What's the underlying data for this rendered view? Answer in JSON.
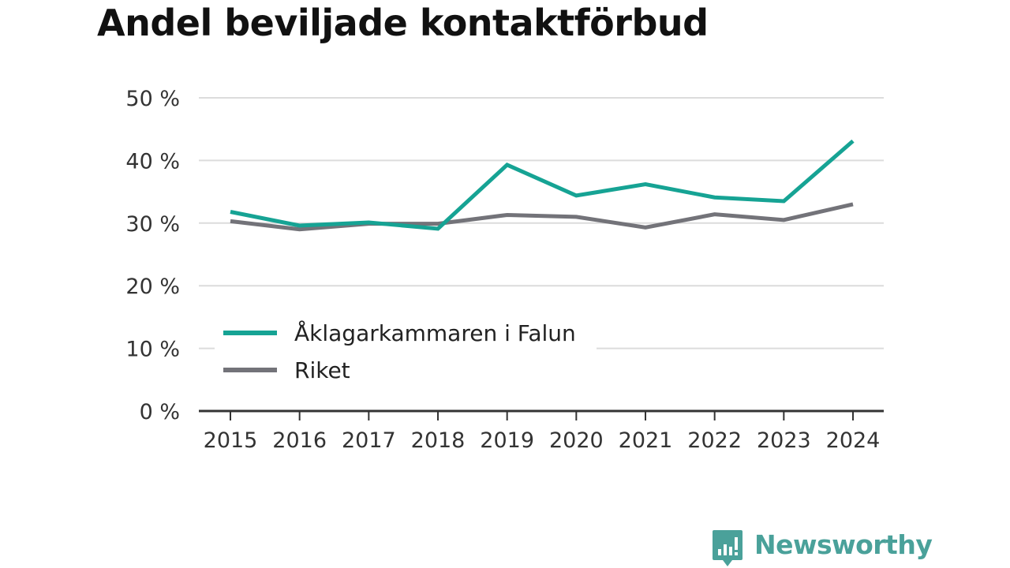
{
  "title": "Andel beviljade kontaktförbud",
  "brand": {
    "name": "Newsworthy",
    "logo_icon": "newsworthy-logo-icon",
    "color": "#4aa19a"
  },
  "chart_data": {
    "type": "line",
    "title": "Andel beviljade kontaktförbud",
    "xlabel": "",
    "ylabel": "",
    "categories": [
      "2015",
      "2016",
      "2017",
      "2018",
      "2019",
      "2020",
      "2021",
      "2022",
      "2023",
      "2024"
    ],
    "yticks": [
      "0 %",
      "10 %",
      "20 %",
      "30 %",
      "40 %",
      "50 %"
    ],
    "ylim": [
      0,
      50
    ],
    "grid": true,
    "legend_position": "lower-left",
    "series": [
      {
        "name": "Åklagarkammaren i Falun",
        "color": "#16a394",
        "values": [
          31.8,
          29.6,
          30.1,
          29.1,
          39.3,
          34.4,
          36.2,
          34.1,
          33.5,
          43.1
        ]
      },
      {
        "name": "Riket",
        "color": "#737379",
        "values": [
          30.3,
          29.0,
          29.9,
          29.9,
          31.3,
          31.0,
          29.3,
          31.4,
          30.5,
          33.0
        ]
      }
    ]
  }
}
